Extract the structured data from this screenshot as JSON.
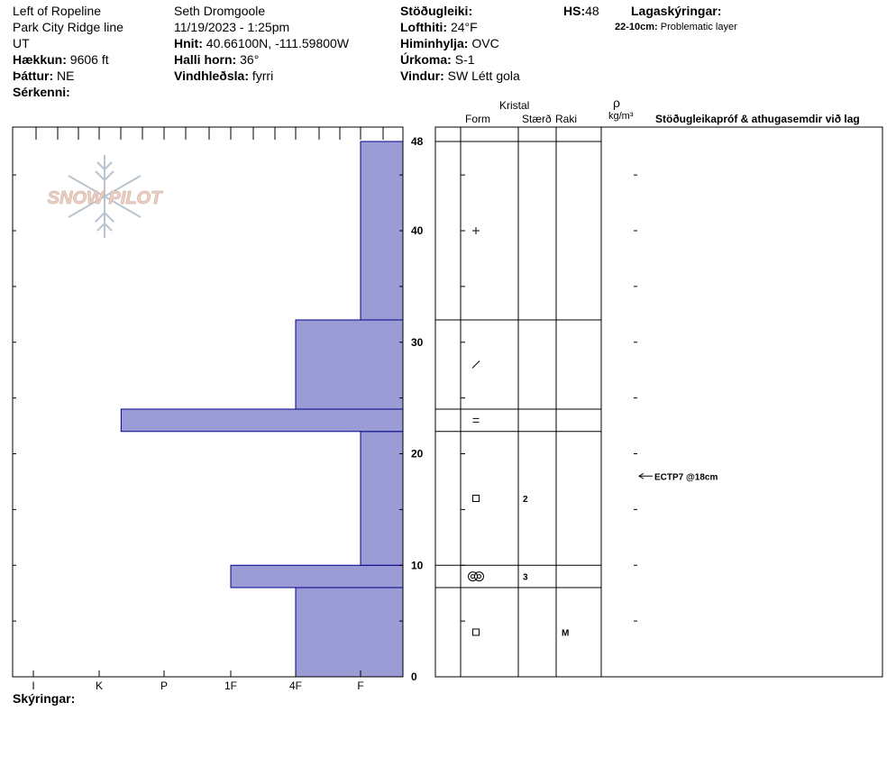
{
  "header": {
    "col1": {
      "location": "Left of Ropeline",
      "route": "Park City Ridge line",
      "state": "UT",
      "elevation_label": "Hækkun:",
      "elevation_value": "9606 ft",
      "aspect_label": "Þáttur:",
      "aspect_value": "NE",
      "features_label": "Sérkenni:"
    },
    "col2": {
      "observer": "Seth Dromgoole",
      "datetime": "11/19/2023 - 1:25pm",
      "coords_label": "Hnit:",
      "coords_value": "40.66100N, -111.59800W",
      "slope_label": "Halli horn:",
      "slope_value": "36°",
      "wind_loading_label": "Vindhleðsla:",
      "wind_loading_value": "fyrri"
    },
    "col3": {
      "stability_label": "Stöðugleiki:",
      "air_temp_label": "Lofthiti:",
      "air_temp_value": "24°F",
      "sky_label": "Himinhylja:",
      "sky_value": "OVC",
      "precip_label": "Úrkoma:",
      "precip_value": "S-1",
      "wind_label": "Vindur:",
      "wind_value": "SW Létt gola"
    },
    "hs_label": "HS:",
    "hs_value": "48",
    "legend_label": "Lagaskýringar:",
    "legend_key": "22-10cm:",
    "legend_text": "Problematic layer"
  },
  "logo": {
    "text": "SNOW PILOT"
  },
  "columns": {
    "crystal": "Kristal",
    "form": "Form",
    "size": "Stærð",
    "moisture": "Raki",
    "rho": "ρ",
    "density_unit": "kg/m³",
    "tests": "Stöðugleikapróf & athugasemdir við lag"
  },
  "notes_label": "Skýringar:",
  "test_annotation": {
    "text": "ECTP7 @18cm",
    "height_cm": 18
  },
  "colors": {
    "bar_fill": "#9b9bd6",
    "bar_stroke": "#00008b",
    "grid": "#000000",
    "logo_snowflake": "#b8c4d0",
    "logo_text_fill": "#ead2c6"
  },
  "chart_data": {
    "type": "bar",
    "orientation": "horizontal",
    "y_axis": {
      "label": "",
      "ylim": [
        0,
        48
      ],
      "ticks": [
        0,
        10,
        20,
        30,
        40,
        48
      ]
    },
    "x_axis": {
      "label": "",
      "categories": [
        "I",
        "K",
        "P",
        "1F",
        "4F",
        "F"
      ]
    },
    "layers": [
      {
        "bottom": 0,
        "top": 8,
        "hardness": "4F",
        "form_icon": "square",
        "size": "",
        "moisture": "M"
      },
      {
        "bottom": 8,
        "top": 10,
        "hardness": "1F",
        "form_icon": "double-circle",
        "size": "3",
        "moisture": ""
      },
      {
        "bottom": 10,
        "top": 22,
        "hardness": "F",
        "form_icon": "square",
        "size": "2",
        "moisture": ""
      },
      {
        "bottom": 22,
        "top": 24,
        "hardness": "K-",
        "form_icon": "equals",
        "size": "",
        "moisture": ""
      },
      {
        "bottom": 24,
        "top": 32,
        "hardness": "4F",
        "form_icon": "slash",
        "size": "",
        "moisture": ""
      },
      {
        "bottom": 32,
        "top": 48,
        "hardness": "F",
        "form_icon": "plus",
        "size": "",
        "moisture": ""
      }
    ]
  }
}
